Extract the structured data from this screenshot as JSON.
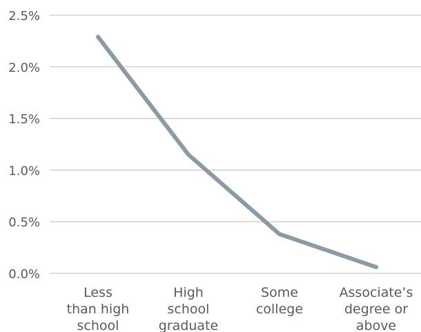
{
  "chart_data": {
    "type": "line",
    "categories": [
      [
        "Less",
        "than high",
        "school"
      ],
      [
        "High",
        "school",
        "graduate"
      ],
      [
        "Some",
        "college"
      ],
      [
        "Associate’s",
        "degree or",
        "above"
      ]
    ],
    "series": [
      {
        "values": [
          2.29,
          1.15,
          0.38,
          0.06
        ]
      }
    ],
    "yticks": [
      "0.0%",
      "0.5%",
      "1.0%",
      "1.5%",
      "2.0%",
      "2.5%"
    ],
    "ylim": [
      0,
      2.5
    ],
    "grid": true,
    "legend": "none",
    "line_color": "#8a9ba3",
    "grid_color": "#bdbdbd",
    "text_color": "#5a5a5a"
  }
}
